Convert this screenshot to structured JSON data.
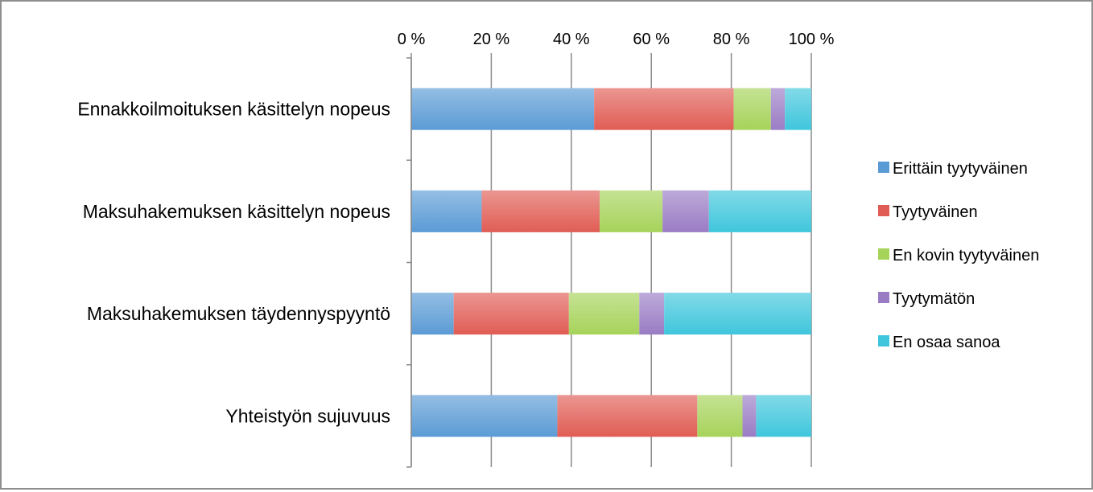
{
  "chart_data": {
    "type": "bar",
    "orientation": "horizontal",
    "stacked": true,
    "percent_stacked": true,
    "title": "",
    "xlabel": "",
    "ylabel": "",
    "xlim": [
      0,
      100
    ],
    "x_axis_position": "top",
    "grid": true,
    "legend_position": "right",
    "tick_labels": [
      "0 %",
      "20 %",
      "40 %",
      "60 %",
      "80 %",
      "100 %"
    ],
    "tick_values": [
      0,
      20,
      40,
      60,
      80,
      100
    ],
    "categories": [
      "Ennakkoilmoituksen käsittelyn nopeus",
      "Maksuhakemuksen käsittelyn nopeus",
      "Maksuhakemuksen täydennyspyyntö",
      "Yhteistyön sujuvuus"
    ],
    "series": [
      {
        "name": "Erittäin tyytyväinen",
        "color": "#5b9bd5",
        "values": [
          45.7,
          17.6,
          10.6,
          36.5
        ]
      },
      {
        "name": "Tyytyväinen",
        "color": "#e05d55",
        "values": [
          34.9,
          29.5,
          28.8,
          35.0
        ]
      },
      {
        "name": "En kovin tyytyväinen",
        "color": "#a6d35a",
        "values": [
          9.3,
          15.7,
          17.6,
          11.3
        ]
      },
      {
        "name": "Tyytymätön",
        "color": "#9a7cc4",
        "values": [
          3.5,
          11.6,
          6.2,
          3.4
        ]
      },
      {
        "name": "En osaa sanoa",
        "color": "#3fc6dc",
        "values": [
          6.6,
          25.6,
          36.8,
          13.8
        ]
      }
    ]
  }
}
